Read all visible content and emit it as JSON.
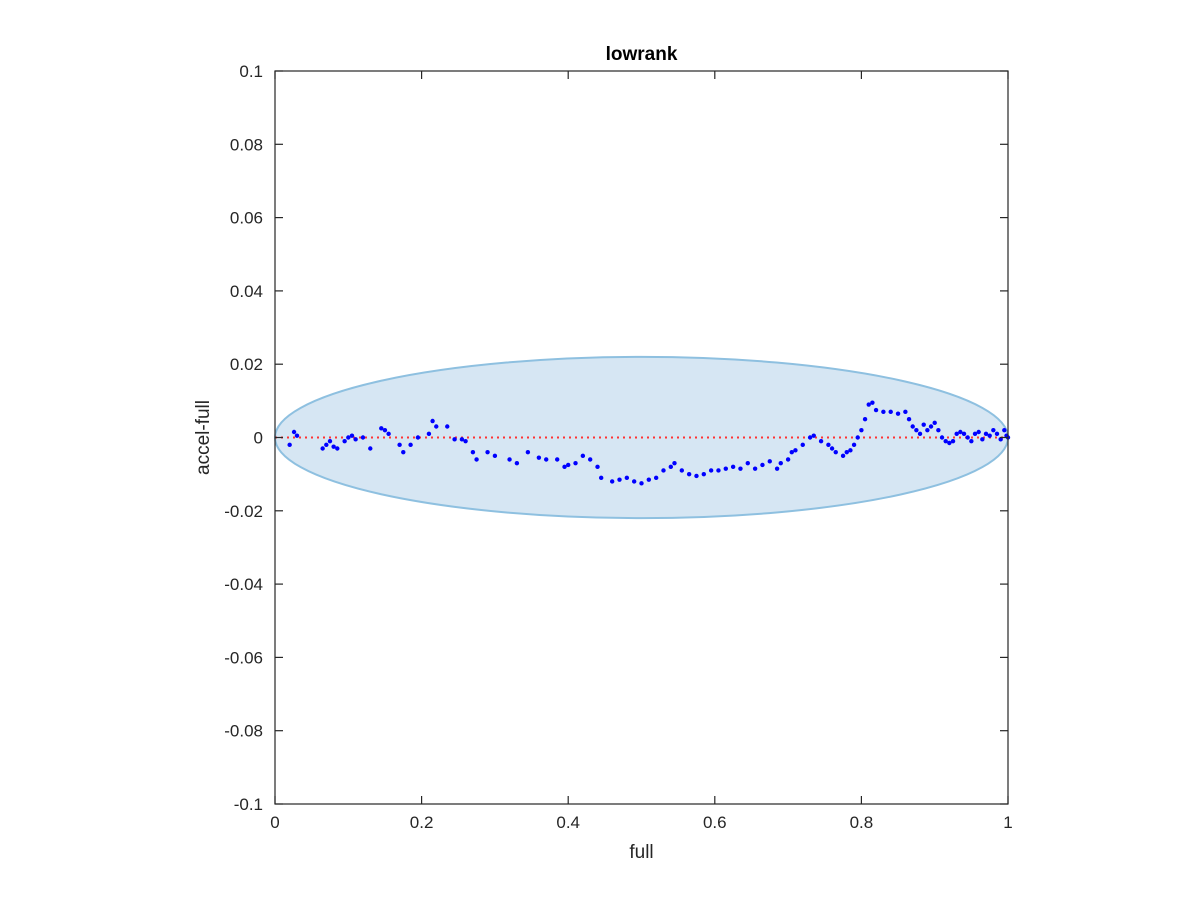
{
  "chart_data": {
    "type": "scatter",
    "title": "lowrank",
    "xlabel": "full",
    "ylabel": "accel-full",
    "xlim": [
      0,
      1
    ],
    "ylim": [
      -0.1,
      0.1
    ],
    "xticks": [
      0,
      0.2,
      0.4,
      0.6,
      0.8,
      1
    ],
    "xtick_labels": [
      "0",
      "0.2",
      "0.4",
      "0.6",
      "0.8",
      "1"
    ],
    "yticks": [
      -0.1,
      -0.08,
      -0.06,
      -0.04,
      -0.02,
      0,
      0.02,
      0.04,
      0.06,
      0.08,
      0.1
    ],
    "ytick_labels": [
      "-0.1",
      "-0.08",
      "-0.06",
      "-0.04",
      "-0.02",
      "0",
      "0.02",
      "0.04",
      "0.06",
      "0.08",
      "0.1"
    ],
    "grid": false,
    "colors": {
      "points": "#0000ff",
      "reference_line": "#ff3333",
      "ellipse_fill": "#d6e6f3",
      "ellipse_stroke": "#8ec0e0",
      "axes": "#262626"
    },
    "reference_line": {
      "y": 0,
      "x": [
        0,
        1
      ],
      "style": "dotted"
    },
    "ellipse": {
      "center": [
        0.5,
        0.0
      ],
      "radii": [
        0.5,
        0.022
      ]
    },
    "points": [
      [
        0.02,
        -0.002
      ],
      [
        0.026,
        0.0015
      ],
      [
        0.03,
        0.0005
      ],
      [
        0.065,
        -0.003
      ],
      [
        0.07,
        -0.002
      ],
      [
        0.075,
        -0.001
      ],
      [
        0.08,
        -0.0025
      ],
      [
        0.085,
        -0.003
      ],
      [
        0.095,
        -0.001
      ],
      [
        0.1,
        0.0
      ],
      [
        0.105,
        0.0005
      ],
      [
        0.11,
        -0.0005
      ],
      [
        0.12,
        0.0
      ],
      [
        0.13,
        -0.003
      ],
      [
        0.145,
        0.0025
      ],
      [
        0.15,
        0.002
      ],
      [
        0.155,
        0.001
      ],
      [
        0.17,
        -0.002
      ],
      [
        0.175,
        -0.004
      ],
      [
        0.185,
        -0.002
      ],
      [
        0.195,
        0.0
      ],
      [
        0.21,
        0.001
      ],
      [
        0.215,
        0.0045
      ],
      [
        0.22,
        0.003
      ],
      [
        0.235,
        0.003
      ],
      [
        0.245,
        -0.0005
      ],
      [
        0.255,
        -0.0005
      ],
      [
        0.26,
        -0.001
      ],
      [
        0.27,
        -0.004
      ],
      [
        0.275,
        -0.006
      ],
      [
        0.29,
        -0.004
      ],
      [
        0.3,
        -0.005
      ],
      [
        0.32,
        -0.006
      ],
      [
        0.33,
        -0.007
      ],
      [
        0.345,
        -0.004
      ],
      [
        0.36,
        -0.0055
      ],
      [
        0.37,
        -0.006
      ],
      [
        0.385,
        -0.006
      ],
      [
        0.395,
        -0.008
      ],
      [
        0.4,
        -0.0075
      ],
      [
        0.41,
        -0.007
      ],
      [
        0.42,
        -0.005
      ],
      [
        0.43,
        -0.006
      ],
      [
        0.44,
        -0.008
      ],
      [
        0.445,
        -0.011
      ],
      [
        0.46,
        -0.012
      ],
      [
        0.47,
        -0.0115
      ],
      [
        0.48,
        -0.011
      ],
      [
        0.49,
        -0.012
      ],
      [
        0.5,
        -0.0125
      ],
      [
        0.51,
        -0.0115
      ],
      [
        0.52,
        -0.011
      ],
      [
        0.53,
        -0.009
      ],
      [
        0.54,
        -0.008
      ],
      [
        0.545,
        -0.007
      ],
      [
        0.555,
        -0.009
      ],
      [
        0.565,
        -0.01
      ],
      [
        0.575,
        -0.0105
      ],
      [
        0.585,
        -0.01
      ],
      [
        0.595,
        -0.009
      ],
      [
        0.605,
        -0.009
      ],
      [
        0.615,
        -0.0085
      ],
      [
        0.625,
        -0.008
      ],
      [
        0.635,
        -0.0085
      ],
      [
        0.645,
        -0.007
      ],
      [
        0.655,
        -0.0085
      ],
      [
        0.665,
        -0.0075
      ],
      [
        0.675,
        -0.0065
      ],
      [
        0.685,
        -0.0085
      ],
      [
        0.69,
        -0.007
      ],
      [
        0.7,
        -0.006
      ],
      [
        0.705,
        -0.004
      ],
      [
        0.71,
        -0.0035
      ],
      [
        0.72,
        -0.002
      ],
      [
        0.73,
        0.0
      ],
      [
        0.735,
        0.0005
      ],
      [
        0.745,
        -0.001
      ],
      [
        0.755,
        -0.002
      ],
      [
        0.76,
        -0.003
      ],
      [
        0.765,
        -0.004
      ],
      [
        0.775,
        -0.005
      ],
      [
        0.78,
        -0.004
      ],
      [
        0.785,
        -0.0035
      ],
      [
        0.79,
        -0.002
      ],
      [
        0.795,
        0.0
      ],
      [
        0.8,
        0.002
      ],
      [
        0.805,
        0.005
      ],
      [
        0.81,
        0.009
      ],
      [
        0.815,
        0.0095
      ],
      [
        0.82,
        0.0075
      ],
      [
        0.83,
        0.007
      ],
      [
        0.84,
        0.007
      ],
      [
        0.85,
        0.0065
      ],
      [
        0.86,
        0.007
      ],
      [
        0.865,
        0.005
      ],
      [
        0.87,
        0.003
      ],
      [
        0.875,
        0.002
      ],
      [
        0.88,
        0.001
      ],
      [
        0.885,
        0.0035
      ],
      [
        0.89,
        0.002
      ],
      [
        0.895,
        0.003
      ],
      [
        0.9,
        0.004
      ],
      [
        0.905,
        0.002
      ],
      [
        0.91,
        0.0
      ],
      [
        0.915,
        -0.001
      ],
      [
        0.92,
        -0.0015
      ],
      [
        0.925,
        -0.001
      ],
      [
        0.93,
        0.001
      ],
      [
        0.935,
        0.0015
      ],
      [
        0.94,
        0.001
      ],
      [
        0.945,
        0.0
      ],
      [
        0.95,
        -0.001
      ],
      [
        0.955,
        0.001
      ],
      [
        0.96,
        0.0015
      ],
      [
        0.965,
        -0.0005
      ],
      [
        0.97,
        0.001
      ],
      [
        0.975,
        0.0005
      ],
      [
        0.98,
        0.002
      ],
      [
        0.985,
        0.001
      ],
      [
        0.99,
        -0.0005
      ],
      [
        0.995,
        0.002
      ],
      [
        0.998,
        0.0005
      ],
      [
        1.0,
        0.0
      ]
    ]
  }
}
